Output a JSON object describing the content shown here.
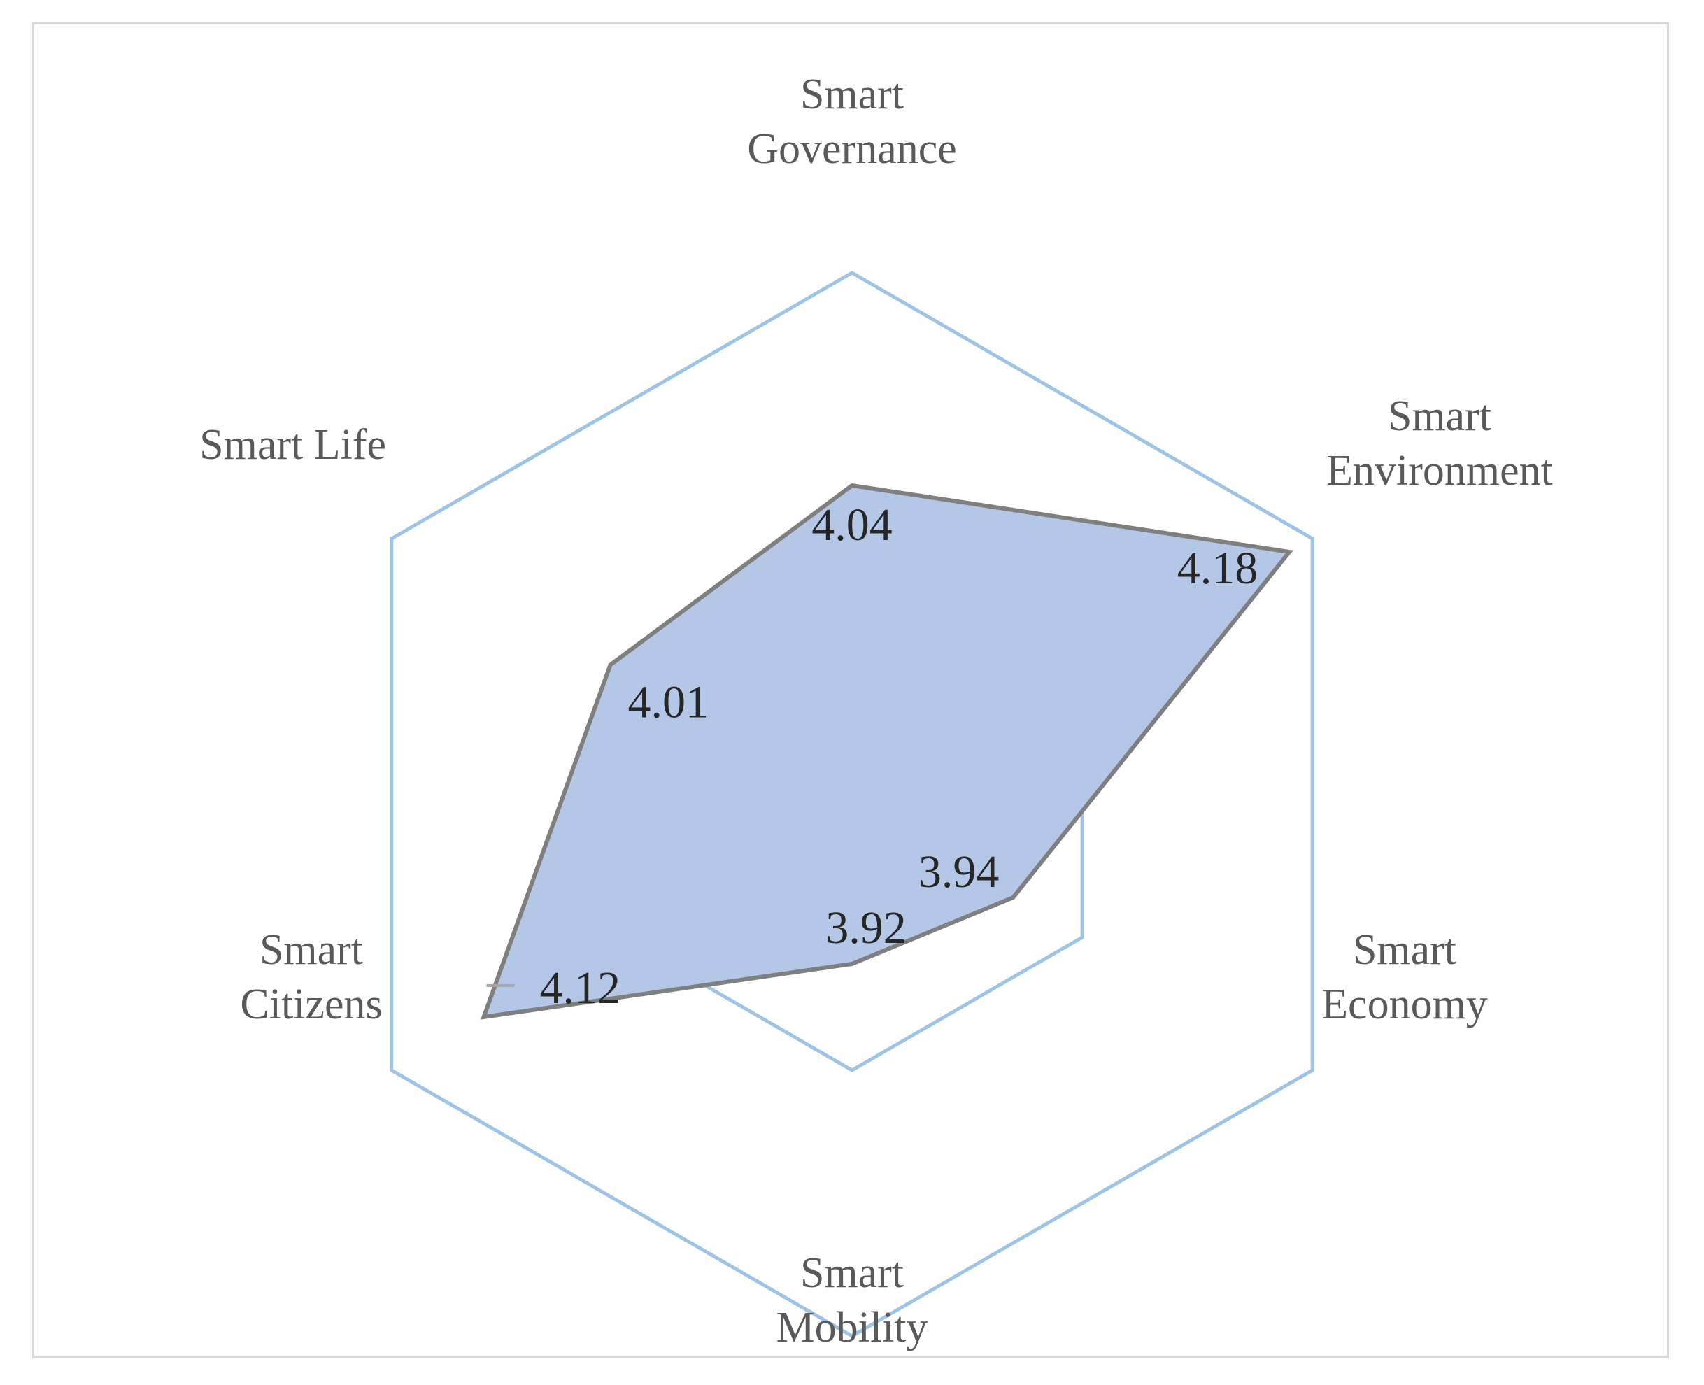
{
  "chart_data": {
    "type": "radar",
    "title": "",
    "categories": [
      "Smart Governance",
      "Smart Environment",
      "Smart Economy",
      "Smart Mobility",
      "Smart Citizens",
      "Smart Life"
    ],
    "category_lines": [
      [
        "Smart",
        "Governance"
      ],
      [
        "Smart",
        "Environment"
      ],
      [
        "Smart",
        "Economy"
      ],
      [
        "Smart",
        "Mobility"
      ],
      [
        "Smart",
        "Citizens"
      ],
      [
        "Smart Life"
      ]
    ],
    "series": [
      {
        "values": [
          4.04,
          4.18,
          3.94,
          3.92,
          4.12,
          4.01
        ],
        "labels": [
          "4.04",
          "4.18",
          "3.94",
          "3.92",
          "4.12",
          "4.01"
        ]
      }
    ],
    "rlim": [
      3.8,
      4.2
    ],
    "grid_levels": [
      3.9,
      4.0,
      4.2
    ],
    "colors": {
      "grid": "#9dc3e6",
      "fill": "#b4c7e7",
      "line": "#7f7f7f",
      "frame": "#d9d9d9"
    }
  }
}
